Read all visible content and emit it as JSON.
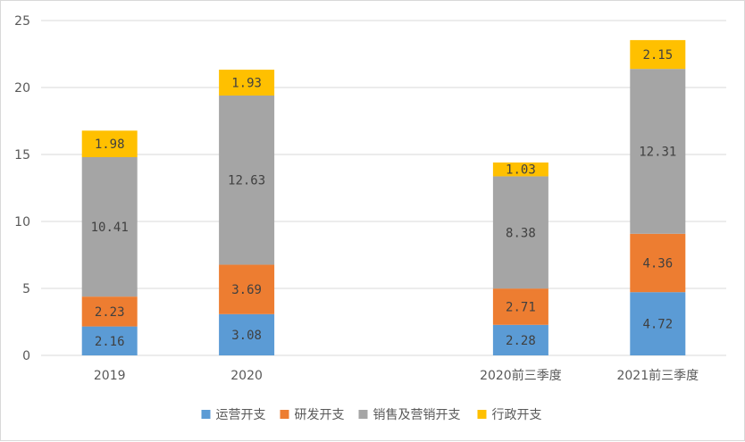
{
  "chart_data": {
    "type": "bar",
    "stacked": true,
    "categories": [
      "2019",
      "2020",
      "",
      "2020前三季度",
      "2021前三季度"
    ],
    "series": [
      {
        "name": "运营开支",
        "color": "#5b9bd5",
        "values": [
          2.16,
          3.08,
          null,
          2.28,
          4.72
        ],
        "labels": [
          "2.16",
          "3.08",
          "",
          "2.28",
          "4.72"
        ]
      },
      {
        "name": "研发开支",
        "color": "#ed7d31",
        "values": [
          2.23,
          3.69,
          null,
          2.71,
          4.36
        ],
        "labels": [
          "2.23",
          "3.69",
          "",
          "2.71",
          "4.36"
        ]
      },
      {
        "name": "销售及营销开支",
        "color": "#a5a5a5",
        "values": [
          10.41,
          12.63,
          null,
          8.38,
          12.31
        ],
        "labels": [
          "10.41",
          "12.63",
          "",
          "8.38",
          "12.31"
        ]
      },
      {
        "name": "行政开支",
        "color": "#ffc000",
        "values": [
          1.98,
          1.93,
          null,
          1.03,
          2.15
        ],
        "labels": [
          "1.98",
          "1.93",
          "",
          "1.03",
          "2.15"
        ]
      }
    ],
    "y_ticks": [
      "0",
      "5",
      "10",
      "15",
      "20",
      "25"
    ],
    "ylim": [
      0,
      25
    ],
    "grid": true,
    "legend_position": "bottom",
    "title": "",
    "xlabel": "",
    "ylabel": ""
  }
}
